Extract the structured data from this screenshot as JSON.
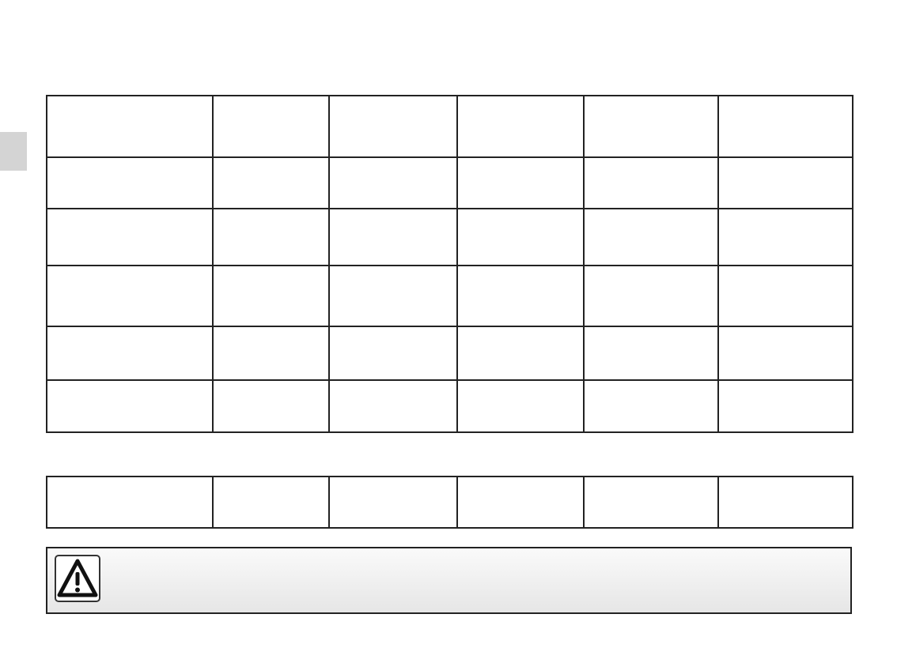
{
  "main_table": {
    "rows": [
      [
        "",
        "",
        "",
        "",
        "",
        ""
      ],
      [
        "",
        "",
        "",
        "",
        "",
        ""
      ],
      [
        "",
        "",
        "",
        "",
        "",
        ""
      ],
      [
        "",
        "",
        "",
        "",
        "",
        ""
      ],
      [
        "",
        "",
        "",
        "",
        "",
        ""
      ],
      [
        "",
        "",
        "",
        "",
        "",
        ""
      ]
    ]
  },
  "second_table": {
    "rows": [
      [
        "",
        "",
        "",
        "",
        "",
        ""
      ]
    ]
  },
  "warning": {
    "icon": "warning-triangle-icon",
    "text": ""
  },
  "colors": {
    "border": "#222222",
    "side_tab": "#d4d4d4"
  }
}
